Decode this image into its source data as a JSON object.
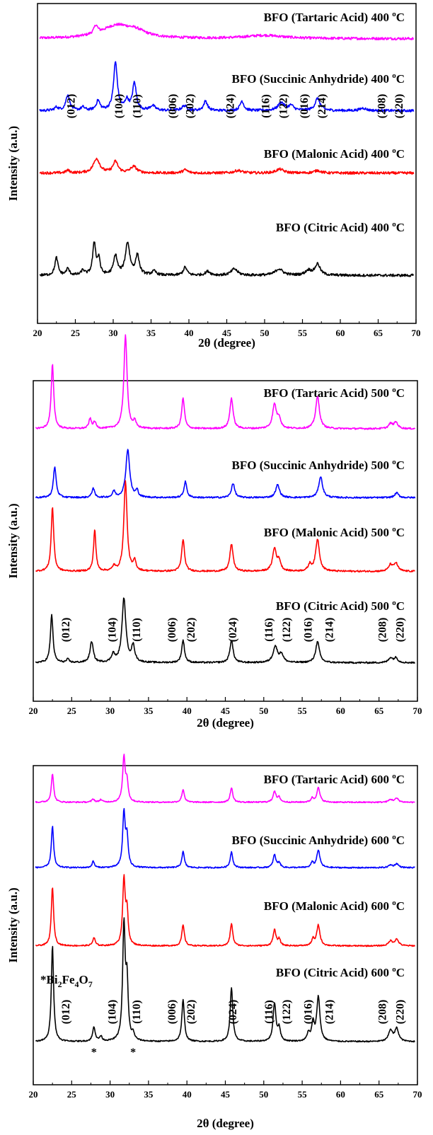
{
  "colors": {
    "Tartaric Acid": "#ff00ff",
    "Succinic Anhydride": "#0000ff",
    "Malonic Acid": "#ff0000",
    "Citric Acid": "#000000"
  },
  "chart_data": [
    {
      "type": "line",
      "temperature": "400",
      "xlabel": "2θ (degree)",
      "ylabel": "Intensity (a.u.)",
      "xlim": [
        20,
        70
      ],
      "xticks": [
        "20",
        "25",
        "30",
        "35",
        "40",
        "45",
        "50",
        "55",
        "60",
        "65",
        "70"
      ],
      "grid": false,
      "series": [
        {
          "name": "Tartaric Acid",
          "label": "BFO (Tartaric Acid) 400 °C",
          "baseline": 0.89,
          "noise": 0.004,
          "peaks": [
            [
              27.7,
              0.025,
              0.3
            ],
            [
              30.5,
              0.04,
              2.5
            ],
            [
              33,
              0.015,
              1.5
            ],
            [
              50,
              0.01,
              3
            ]
          ]
        },
        {
          "name": "Succinic Anhydride",
          "label": "BFO (Succinic Anhydride) 400 °C",
          "baseline": 0.665,
          "noise": 0.004,
          "peaks": [
            [
              22.5,
              0.01,
              0.3
            ],
            [
              24,
              0.05,
              0.3
            ],
            [
              26,
              0.01,
              0.3
            ],
            [
              28,
              0.03,
              0.3
            ],
            [
              30.3,
              0.15,
              0.3
            ],
            [
              31.8,
              0.03,
              0.3
            ],
            [
              32.8,
              0.085,
              0.3
            ],
            [
              35.2,
              0.015,
              0.4
            ],
            [
              39.4,
              0.015,
              0.4
            ],
            [
              42.2,
              0.03,
              0.3
            ],
            [
              47,
              0.03,
              0.3
            ],
            [
              52.2,
              0.025,
              0.5
            ],
            [
              53.5,
              0.015,
              0.4
            ],
            [
              57,
              0.038,
              0.4
            ],
            [
              63,
              0.008,
              0.5
            ]
          ]
        },
        {
          "name": "Malonic Acid",
          "label": "BFO (Malonic Acid) 400 °C",
          "baseline": 0.47,
          "noise": 0.004,
          "peaks": [
            [
              24,
              0.008,
              0.3
            ],
            [
              27.8,
              0.045,
              0.5
            ],
            [
              30.3,
              0.035,
              0.4
            ],
            [
              32.7,
              0.02,
              0.5
            ],
            [
              39.5,
              0.01,
              0.4
            ],
            [
              46.5,
              0.008,
              0.6
            ],
            [
              52,
              0.012,
              0.6
            ],
            [
              57,
              0.008,
              0.5
            ]
          ]
        },
        {
          "name": "Citric Acid",
          "label": "BFO (Citric Acid) 400 °C",
          "baseline": 0.15,
          "noise": 0.004,
          "peaks": [
            [
              22.5,
              0.055,
              0.25
            ],
            [
              24,
              0.02,
              0.25
            ],
            [
              26,
              0.015,
              0.25
            ],
            [
              27.5,
              0.1,
              0.25
            ],
            [
              28.1,
              0.05,
              0.2
            ],
            [
              30.3,
              0.06,
              0.3
            ],
            [
              31.9,
              0.1,
              0.35
            ],
            [
              33.2,
              0.06,
              0.3
            ],
            [
              35.4,
              0.012,
              0.35
            ],
            [
              39.5,
              0.025,
              0.3
            ],
            [
              42.5,
              0.012,
              0.4
            ],
            [
              46,
              0.02,
              0.5
            ],
            [
              51.9,
              0.02,
              0.6
            ],
            [
              55.8,
              0.015,
              0.5
            ],
            [
              57,
              0.035,
              0.4
            ]
          ]
        }
      ],
      "annotations": [
        {
          "text": "(012)",
          "x": 24.5
        },
        {
          "text": "(104)",
          "x": 30.8
        },
        {
          "text": "(110)",
          "x": 33.2
        },
        {
          "text": "(006)",
          "x": 37.9
        },
        {
          "text": "(202)",
          "x": 40.2
        },
        {
          "text": "(024)",
          "x": 45.5
        },
        {
          "text": "(116)",
          "x": 50.2
        },
        {
          "text": "(122)",
          "x": 52.5
        },
        {
          "text": "(016)",
          "x": 55.3
        },
        {
          "text": "(214)",
          "x": 57.6
        },
        {
          "text": "(208)",
          "x": 65.5
        },
        {
          "text": "(220)",
          "x": 67.8
        }
      ]
    },
    {
      "type": "line",
      "temperature": "500",
      "xlabel": "2θ (degree)",
      "ylabel": "Intensity (a.u.)",
      "xlim": [
        20,
        70
      ],
      "xticks": [
        "20",
        "25",
        "30",
        "35",
        "40",
        "45",
        "50",
        "55",
        "60",
        "65",
        "70"
      ],
      "grid": false,
      "series": [
        {
          "name": "Tartaric Acid",
          "label": "BFO (Tartaric Acid) 500 °C",
          "baseline": 0.85,
          "noise": 0.0025,
          "peaks": [
            [
              22.5,
              0.2,
              0.2
            ],
            [
              27.4,
              0.03,
              0.2
            ],
            [
              28,
              0.02,
              0.2
            ],
            [
              32,
              0.29,
              0.25
            ],
            [
              33.2,
              0.02,
              0.2
            ],
            [
              39.5,
              0.095,
              0.22
            ],
            [
              45.8,
              0.095,
              0.25
            ],
            [
              51.4,
              0.075,
              0.3
            ],
            [
              52,
              0.03,
              0.25
            ],
            [
              57,
              0.1,
              0.3
            ],
            [
              66.5,
              0.015,
              0.3
            ],
            [
              67.2,
              0.02,
              0.3
            ]
          ]
        },
        {
          "name": "Succinic Anhydride",
          "label": "BFO (Succinic Anhydride) 500 °C",
          "baseline": 0.635,
          "noise": 0.0025,
          "peaks": [
            [
              22.8,
              0.095,
              0.22
            ],
            [
              27.8,
              0.03,
              0.2
            ],
            [
              30.5,
              0.02,
              0.2
            ],
            [
              32.3,
              0.15,
              0.3
            ],
            [
              33.5,
              0.02,
              0.2
            ],
            [
              39.8,
              0.05,
              0.22
            ],
            [
              46,
              0.045,
              0.25
            ],
            [
              51.8,
              0.04,
              0.3
            ],
            [
              57.4,
              0.065,
              0.3
            ],
            [
              67.3,
              0.015,
              0.3
            ]
          ]
        },
        {
          "name": "Malonic Acid",
          "label": "BFO (Malonic Acid) 500 °C",
          "baseline": 0.405,
          "noise": 0.0025,
          "peaks": [
            [
              22.5,
              0.2,
              0.2
            ],
            [
              28,
              0.13,
              0.18
            ],
            [
              30.5,
              0.015,
              0.2
            ],
            [
              32,
              0.28,
              0.25
            ],
            [
              33.2,
              0.03,
              0.2
            ],
            [
              39.5,
              0.1,
              0.22
            ],
            [
              45.8,
              0.085,
              0.25
            ],
            [
              51.4,
              0.07,
              0.3
            ],
            [
              52,
              0.03,
              0.25
            ],
            [
              56,
              0.02,
              0.25
            ],
            [
              57,
              0.1,
              0.3
            ],
            [
              66.5,
              0.02,
              0.3
            ],
            [
              67.2,
              0.025,
              0.3
            ]
          ]
        },
        {
          "name": "Citric Acid",
          "label": "BFO (Citric Acid) 500 °C",
          "baseline": 0.12,
          "noise": 0.0025,
          "peaks": [
            [
              22.4,
              0.15,
              0.2
            ],
            [
              24.5,
              0.01,
              0.2
            ],
            [
              27.6,
              0.065,
              0.25
            ],
            [
              30.4,
              0.025,
              0.25
            ],
            [
              31.8,
              0.2,
              0.3
            ],
            [
              33,
              0.05,
              0.25
            ],
            [
              39.5,
              0.07,
              0.22
            ],
            [
              45.8,
              0.07,
              0.25
            ],
            [
              51.5,
              0.05,
              0.35
            ],
            [
              52.3,
              0.025,
              0.3
            ],
            [
              57,
              0.065,
              0.3
            ],
            [
              66.5,
              0.015,
              0.3
            ],
            [
              67.2,
              0.015,
              0.3
            ]
          ]
        }
      ],
      "annotations": [
        {
          "text": "(012)",
          "x": 24.3
        },
        {
          "text": "(104)",
          "x": 30.3
        },
        {
          "text": "(110)",
          "x": 33.5
        },
        {
          "text": "(006)",
          "x": 38.1
        },
        {
          "text": "(202)",
          "x": 40.6
        },
        {
          "text": "(024)",
          "x": 46
        },
        {
          "text": "(116)",
          "x": 50.7
        },
        {
          "text": "(122)",
          "x": 53
        },
        {
          "text": "(016)",
          "x": 55.8
        },
        {
          "text": "(214)",
          "x": 58.6
        },
        {
          "text": "(208)",
          "x": 65.5
        },
        {
          "text": "(220)",
          "x": 67.8
        }
      ]
    },
    {
      "type": "line",
      "temperature": "600",
      "xlabel": "2θ (degree)",
      "ylabel": "Intensity (a.u.)",
      "xlim": [
        20,
        70
      ],
      "xticks": [
        "20",
        "25",
        "30",
        "35",
        "40",
        "45",
        "50",
        "55",
        "60",
        "65",
        "70"
      ],
      "grid": false,
      "series": [
        {
          "name": "Tartaric Acid",
          "label": "BFO (Tartaric Acid) 600 °C",
          "baseline": 0.885,
          "noise": 0.002,
          "peaks": [
            [
              22.5,
              0.09,
              0.18
            ],
            [
              27.8,
              0.01,
              0.2
            ],
            [
              28.8,
              0.008,
              0.2
            ],
            [
              31.8,
              0.14,
              0.2
            ],
            [
              32.2,
              0.06,
              0.18
            ],
            [
              39.5,
              0.04,
              0.2
            ],
            [
              45.8,
              0.045,
              0.2
            ],
            [
              51.4,
              0.035,
              0.22
            ],
            [
              52,
              0.015,
              0.2
            ],
            [
              56.3,
              0.012,
              0.2
            ],
            [
              57.1,
              0.045,
              0.25
            ],
            [
              66.5,
              0.008,
              0.3
            ],
            [
              67.3,
              0.012,
              0.3
            ]
          ]
        },
        {
          "name": "Succinic Anhydride",
          "label": "BFO (Succinic Anhydride) 600 °C",
          "baseline": 0.68,
          "noise": 0.002,
          "peaks": [
            [
              22.5,
              0.13,
              0.18
            ],
            [
              27.8,
              0.02,
              0.18
            ],
            [
              31.8,
              0.17,
              0.2
            ],
            [
              32.2,
              0.09,
              0.18
            ],
            [
              39.5,
              0.05,
              0.2
            ],
            [
              45.8,
              0.05,
              0.2
            ],
            [
              51.4,
              0.04,
              0.22
            ],
            [
              52,
              0.015,
              0.2
            ],
            [
              56.3,
              0.015,
              0.2
            ],
            [
              57.1,
              0.055,
              0.25
            ],
            [
              66.5,
              0.008,
              0.3
            ],
            [
              67.3,
              0.012,
              0.3
            ]
          ]
        },
        {
          "name": "Malonic Acid",
          "label": "BFO (Malonic Acid) 600 °C",
          "baseline": 0.435,
          "noise": 0.002,
          "peaks": [
            [
              22.5,
              0.185,
              0.18
            ],
            [
              27.9,
              0.025,
              0.2
            ],
            [
              31.8,
              0.205,
              0.2
            ],
            [
              32.2,
              0.1,
              0.18
            ],
            [
              39.5,
              0.065,
              0.2
            ],
            [
              45.8,
              0.07,
              0.2
            ],
            [
              51.4,
              0.05,
              0.22
            ],
            [
              52,
              0.02,
              0.2
            ],
            [
              56.4,
              0.02,
              0.2
            ],
            [
              57.1,
              0.065,
              0.25
            ],
            [
              66.5,
              0.015,
              0.3
            ],
            [
              67.3,
              0.02,
              0.3
            ]
          ]
        },
        {
          "name": "Citric Acid",
          "label": "BFO (Citric Acid) 600 °C",
          "baseline": 0.135,
          "noise": 0.002,
          "peaks": [
            [
              22.5,
              0.3,
              0.18
            ],
            [
              27.9,
              0.045,
              0.2
            ],
            [
              28.8,
              0.015,
              0.2
            ],
            [
              31.8,
              0.36,
              0.2
            ],
            [
              32.2,
              0.17,
              0.18
            ],
            [
              33,
              0.02,
              0.2
            ],
            [
              39.5,
              0.13,
              0.2
            ],
            [
              45.8,
              0.17,
              0.2
            ],
            [
              51.4,
              0.12,
              0.22
            ],
            [
              52,
              0.04,
              0.2
            ],
            [
              55.8,
              0.025,
              0.2
            ],
            [
              56.4,
              0.055,
              0.2
            ],
            [
              57.1,
              0.14,
              0.25
            ],
            [
              66.5,
              0.035,
              0.3
            ],
            [
              67.3,
              0.04,
              0.3
            ]
          ]
        }
      ],
      "annotations": [
        {
          "text": "(012)",
          "x": 24.3
        },
        {
          "text": "(104)",
          "x": 30.3
        },
        {
          "text": "(110)",
          "x": 33.5
        },
        {
          "text": "(006)",
          "x": 38.1
        },
        {
          "text": "(202)",
          "x": 40.6
        },
        {
          "text": "(024)",
          "x": 46
        },
        {
          "text": "(116)",
          "x": 50.7
        },
        {
          "text": "(122)",
          "x": 53
        },
        {
          "text": "(016)",
          "x": 55.8
        },
        {
          "text": "(214)",
          "x": 58.6
        },
        {
          "text": "(208)",
          "x": 65.5
        },
        {
          "text": "(220)",
          "x": 67.8
        }
      ],
      "impurity": {
        "formula_prefix": "*Bi",
        "sub1": "2",
        "mid1": "Fe",
        "sub2": "4",
        "mid2": "O",
        "sub3": "7",
        "markers": [
          {
            "text": "*",
            "x": 27.9
          },
          {
            "text": "*",
            "x": 33.0
          }
        ]
      }
    }
  ]
}
